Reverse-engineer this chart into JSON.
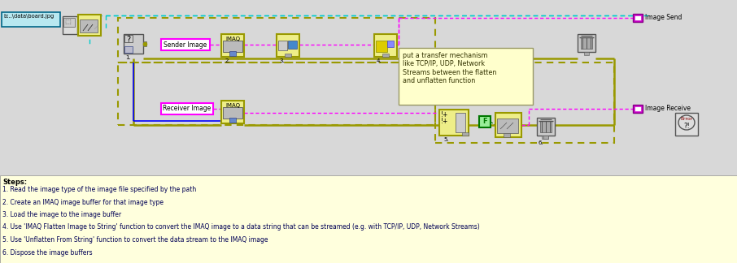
{
  "fig_width": 9.06,
  "fig_height": 3.24,
  "dpi": 100,
  "bg_white": "#ffffff",
  "bg_diagram": "#d8d8d8",
  "bg_steps": "#ffffdd",
  "color_magenta": "#ff00ff",
  "color_cyan": "#00cccc",
  "color_blue": "#0000ff",
  "color_gold_border": "#999900",
  "color_gold_fill": "#eeee88",
  "color_purple_wire": "#cc00cc",
  "color_green": "#007700",
  "steps_title": "Steps:",
  "steps_lines": [
    "1. Read the image type of the image file specified by the path",
    "2. Create an IMAQ image buffer for that image type",
    "3. Load the image to the image buffer",
    "4. Use 'IMAQ Flatten Image to String' function to convert the IMAQ image to a data string that can be streamed (e.g. with TCP/IP, UDP, Network Streams)",
    "5. Use 'Unflatten From String' function to convert the data stream to the IMAQ image",
    "6. Dispose the image buffers"
  ],
  "tooltip_text": "put a transfer mechanism\nlike TCP/IP, UDP, Network\nStreams between the flatten\nand unflatten function",
  "label_image_send": "Image Send",
  "label_image_receive": "Image Receive",
  "label_path": "b:..\\data\\board.jpg",
  "label_sender": "Sender Image",
  "label_receiver": "Receiver Image",
  "num_labels": [
    "1.",
    "2.",
    "3.",
    "4.",
    "5.",
    "6."
  ]
}
